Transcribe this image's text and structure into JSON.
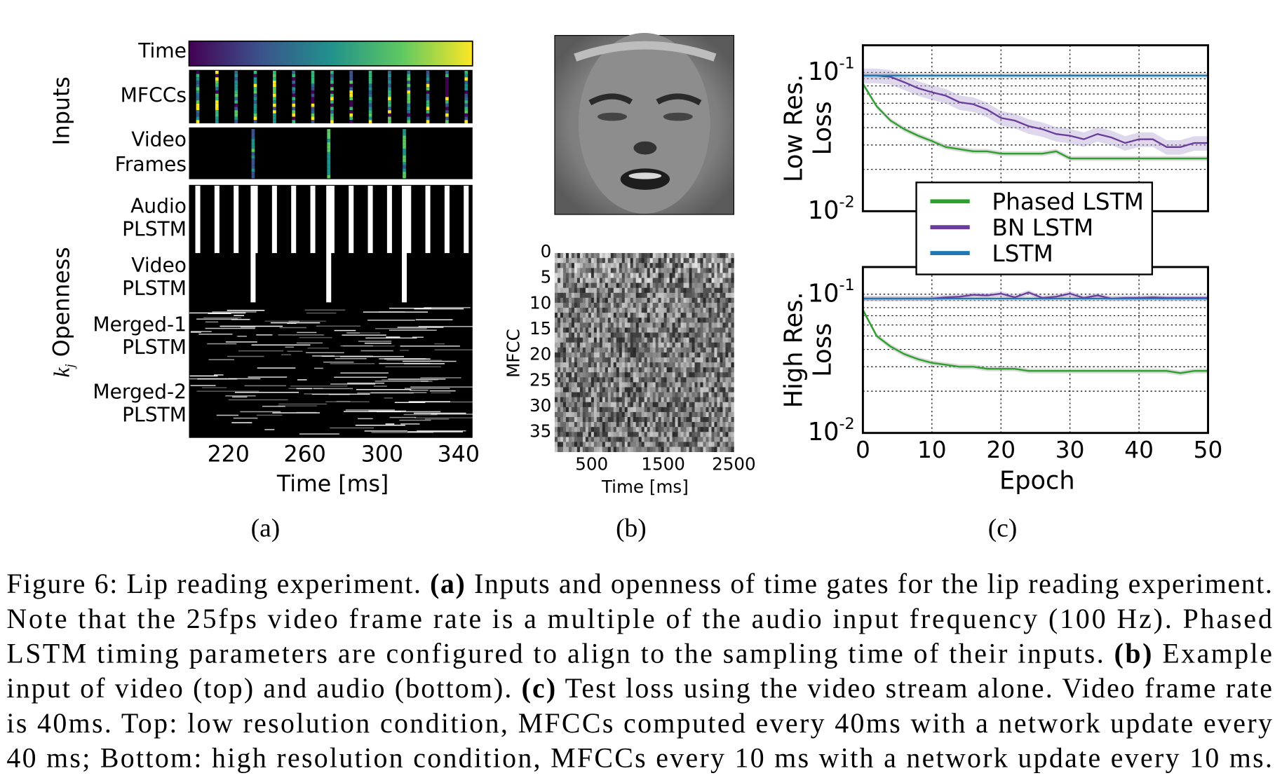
{
  "panel_a": {
    "row_labels": {
      "time": "Time",
      "mfccs": "MFCCs",
      "video_frames": [
        "Video",
        "Frames"
      ],
      "audio_plstm": [
        "Audio",
        "PLSTM"
      ],
      "video_plstm": [
        "Video",
        "PLSTM"
      ],
      "merged1_plstm": [
        "Merged-1",
        "PLSTM"
      ],
      "merged2_plstm": [
        "Merged-2",
        "PLSTM"
      ]
    },
    "group_labels": {
      "inputs": "Inputs",
      "openness_symbol": "k",
      "openness_subscript": "j",
      "openness": "Openness"
    },
    "x_ticks": [
      "220",
      "260",
      "300",
      "340"
    ],
    "x_label": "Time [ms]",
    "sublabel": "(a)",
    "colormap": "viridis"
  },
  "panel_b": {
    "y_ticks": [
      "0",
      "5",
      "10",
      "15",
      "20",
      "25",
      "30",
      "35"
    ],
    "y_label": "MFCC",
    "x_ticks": [
      "500",
      "1500",
      "2500"
    ],
    "x_label": "Time [ms]",
    "sublabel": "(b)"
  },
  "chart_data": {
    "type": "line",
    "x_label": "Epoch",
    "x_ticks": [
      "0",
      "10",
      "20",
      "30",
      "40",
      "50"
    ],
    "xlim": [
      0,
      50
    ],
    "yscale": "log",
    "grid": true,
    "legend_placement": "center",
    "legend": [
      "Phased LSTM",
      "BN LSTM",
      "LSTM"
    ],
    "colors": {
      "Phased LSTM": "#2ca02c",
      "BN LSTM": "#6a3d9a",
      "LSTM": "#1f77b4",
      "band": "#aaaaaa"
    },
    "epochs": [
      0,
      2,
      4,
      6,
      8,
      10,
      12,
      14,
      16,
      18,
      20,
      22,
      24,
      26,
      28,
      30,
      32,
      34,
      36,
      38,
      40,
      42,
      44,
      46,
      48,
      50
    ],
    "subplots": [
      {
        "y_label": [
          "Low Res.",
          "Loss"
        ],
        "y_ticks": [
          {
            "base": "10",
            "exp": "-1"
          },
          {
            "base": "10",
            "exp": "-2"
          }
        ],
        "ylim": [
          0.01,
          0.157
        ],
        "series": [
          {
            "name": "Phased LSTM",
            "values": [
              0.083,
              0.057,
              0.045,
              0.039,
              0.035,
              0.032,
              0.029,
              0.028,
              0.027,
              0.027,
              0.026,
              0.026,
              0.026,
              0.026,
              0.027,
              0.024,
              0.024,
              0.024,
              0.024,
              0.024,
              0.024,
              0.024,
              0.024,
              0.024,
              0.024,
              0.024
            ]
          },
          {
            "name": "BN LSTM",
            "values": [
              0.095,
              0.095,
              0.093,
              0.085,
              0.077,
              0.072,
              0.068,
              0.061,
              0.059,
              0.054,
              0.047,
              0.045,
              0.041,
              0.039,
              0.036,
              0.035,
              0.033,
              0.036,
              0.034,
              0.031,
              0.033,
              0.033,
              0.029,
              0.029,
              0.031,
              0.031
            ]
          },
          {
            "name": "LSTM",
            "values": [
              0.095,
              0.095,
              0.095,
              0.095,
              0.095,
              0.095,
              0.095,
              0.095,
              0.095,
              0.095,
              0.095,
              0.095,
              0.095,
              0.095,
              0.095,
              0.095,
              0.095,
              0.095,
              0.095,
              0.095,
              0.095,
              0.095,
              0.095,
              0.095,
              0.095,
              0.095
            ]
          }
        ]
      },
      {
        "y_label": [
          "High Res.",
          "Loss"
        ],
        "y_ticks": [
          {
            "base": "10",
            "exp": "-1"
          },
          {
            "base": "10",
            "exp": "-2"
          }
        ],
        "ylim": [
          0.01,
          0.157
        ],
        "series": [
          {
            "name": "Phased LSTM",
            "values": [
              0.077,
              0.05,
              0.042,
              0.037,
              0.034,
              0.032,
              0.031,
              0.03,
              0.03,
              0.029,
              0.029,
              0.029,
              0.028,
              0.028,
              0.028,
              0.028,
              0.028,
              0.028,
              0.028,
              0.028,
              0.028,
              0.028,
              0.028,
              0.027,
              0.028,
              0.028
            ]
          },
          {
            "name": "BN LSTM",
            "values": [
              0.093,
              0.093,
              0.093,
              0.093,
              0.093,
              0.093,
              0.095,
              0.096,
              0.099,
              0.098,
              0.101,
              0.095,
              0.103,
              0.094,
              0.096,
              0.101,
              0.094,
              0.098,
              0.093,
              0.094,
              0.094,
              0.095,
              0.094,
              0.094,
              0.094,
              0.094
            ]
          },
          {
            "name": "LSTM",
            "values": [
              0.093,
              0.093,
              0.093,
              0.093,
              0.093,
              0.093,
              0.093,
              0.093,
              0.093,
              0.093,
              0.093,
              0.093,
              0.093,
              0.093,
              0.093,
              0.093,
              0.093,
              0.093,
              0.093,
              0.093,
              0.093,
              0.093,
              0.093,
              0.093,
              0.093,
              0.093
            ]
          }
        ]
      }
    ],
    "sublabel": "(c)"
  },
  "caption": {
    "lines": [
      [
        {
          "t": "Figure 6: Lip reading experiment. "
        },
        {
          "t": "(a)",
          "b": true
        },
        {
          "t": " Inputs and openness of time gates for the lip reading experiment."
        }
      ],
      [
        {
          "t": "Note that the 25fps video frame rate is a multiple of the audio input frequency (100 Hz).  Phased"
        }
      ],
      [
        {
          "t": "LSTM timing parameters are configured to align to the sampling time of their inputs. "
        },
        {
          "t": "(b)",
          "b": true
        },
        {
          "t": " Example"
        }
      ],
      [
        {
          "t": "input of video (top) and audio (bottom). "
        },
        {
          "t": "(c)",
          "b": true
        },
        {
          "t": " Test loss using the video stream alone. Video frame rate"
        }
      ],
      [
        {
          "t": "is 40ms. Top: low resolution condition, MFCCs computed every 40ms with a network update every"
        }
      ],
      [
        {
          "t": "40 ms; Bottom: high resolution condition, MFCCs every 10 ms with a network update every 10 ms."
        }
      ]
    ]
  }
}
